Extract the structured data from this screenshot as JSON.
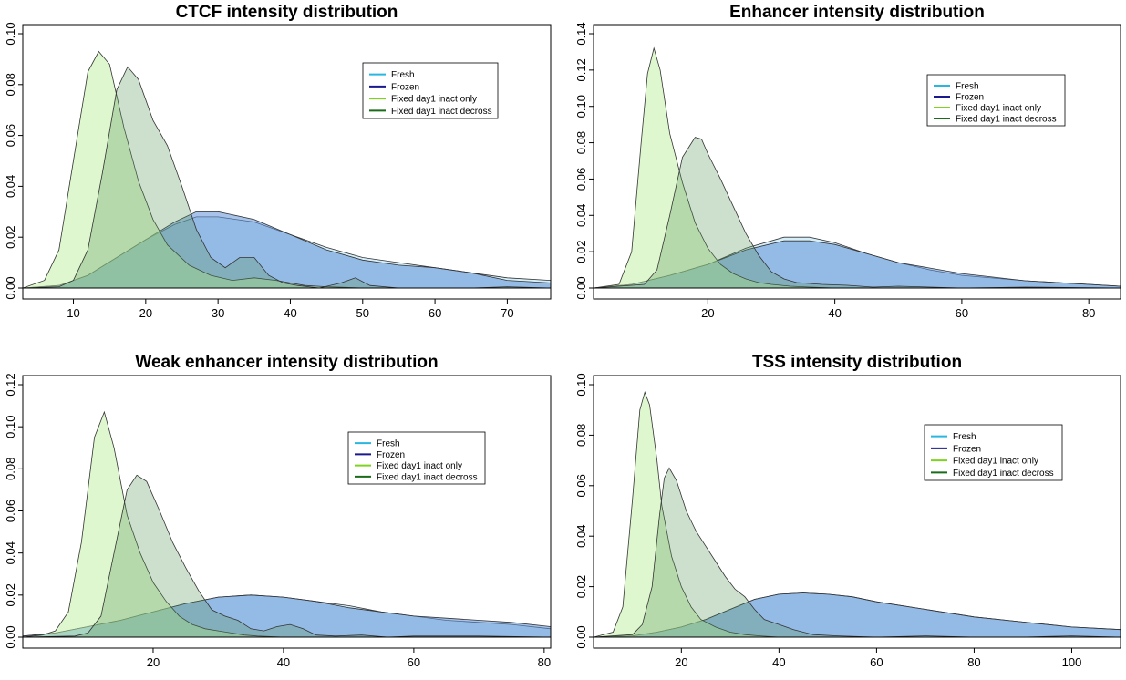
{
  "chart_data": [
    {
      "type": "area",
      "title": "CTCF intensity distribution",
      "xlabel": "",
      "ylabel": "",
      "xlim": [
        3,
        76
      ],
      "ylim": [
        0,
        0.1
      ],
      "xticks": [
        "10",
        "20",
        "30",
        "40",
        "50",
        "60",
        "70"
      ],
      "yticks": [
        "0.00",
        "0.02",
        "0.04",
        "0.06",
        "0.08",
        "0.10"
      ],
      "legend_position": "top-right",
      "series": [
        {
          "name": "Fresh",
          "color": "#29b6e0",
          "x": [
            3,
            8,
            12,
            16,
            20,
            24,
            27,
            30,
            35,
            40,
            45,
            50,
            55,
            60,
            65,
            70,
            76
          ],
          "y": [
            0,
            0.001,
            0.005,
            0.012,
            0.019,
            0.025,
            0.028,
            0.028,
            0.026,
            0.021,
            0.016,
            0.012,
            0.01,
            0.008,
            0.006,
            0.004,
            0.003
          ]
        },
        {
          "name": "Frozen",
          "color": "#1a1a8c",
          "x": [
            3,
            8,
            12,
            16,
            20,
            24,
            27,
            30,
            35,
            40,
            45,
            50,
            55,
            60,
            65,
            70,
            76
          ],
          "y": [
            0,
            0.001,
            0.005,
            0.012,
            0.019,
            0.026,
            0.03,
            0.03,
            0.027,
            0.021,
            0.015,
            0.011,
            0.009,
            0.008,
            0.006,
            0.003,
            0.002
          ]
        },
        {
          "name": "Fixed day1 inact only",
          "color": "#7ed321",
          "x": [
            3,
            6,
            8,
            10,
            12,
            13.5,
            15,
            17,
            19,
            21,
            23,
            26,
            29,
            32,
            35,
            38,
            42,
            45,
            50,
            55
          ],
          "y": [
            0,
            0.003,
            0.015,
            0.05,
            0.085,
            0.093,
            0.088,
            0.063,
            0.042,
            0.027,
            0.017,
            0.009,
            0.005,
            0.003,
            0.004,
            0.003,
            0.001,
            0.0005,
            0,
            0
          ]
        },
        {
          "name": "Fixed day1 inact decross",
          "color": "#1a6b1a",
          "x": [
            3,
            8,
            10,
            12,
            14,
            16,
            17.5,
            19,
            21,
            23,
            25,
            27,
            29,
            31,
            33,
            35,
            37,
            39,
            41,
            44,
            47,
            49,
            51,
            55,
            60,
            65,
            70,
            76
          ],
          "y": [
            0,
            0.0005,
            0.003,
            0.015,
            0.045,
            0.078,
            0.087,
            0.082,
            0.066,
            0.056,
            0.04,
            0.023,
            0.012,
            0.008,
            0.012,
            0.012,
            0.005,
            0.002,
            0.001,
            0,
            0.002,
            0.004,
            0.001,
            0,
            0,
            0,
            0.0005,
            0
          ]
        }
      ]
    },
    {
      "type": "area",
      "title": "Enhancer intensity distribution",
      "xlabel": "",
      "ylabel": "",
      "xlim": [
        2,
        85
      ],
      "ylim": [
        0,
        0.14
      ],
      "xticks": [
        "20",
        "40",
        "60",
        "80"
      ],
      "yticks": [
        "0.00",
        "0.02",
        "0.04",
        "0.06",
        "0.08",
        "0.10",
        "0.12",
        "0.14"
      ],
      "legend_position": "top-right",
      "series": [
        {
          "name": "Fresh",
          "color": "#29b6e0",
          "x": [
            2,
            8,
            14,
            20,
            26,
            32,
            36,
            40,
            45,
            50,
            55,
            60,
            70,
            85
          ],
          "y": [
            0,
            0.002,
            0.007,
            0.013,
            0.022,
            0.028,
            0.028,
            0.025,
            0.019,
            0.014,
            0.01,
            0.007,
            0.004,
            0.001
          ]
        },
        {
          "name": "Frozen",
          "color": "#1a1a8c",
          "x": [
            2,
            8,
            14,
            20,
            26,
            32,
            36,
            40,
            45,
            50,
            55,
            60,
            70,
            85
          ],
          "y": [
            0,
            0.002,
            0.007,
            0.013,
            0.021,
            0.026,
            0.026,
            0.024,
            0.019,
            0.014,
            0.011,
            0.008,
            0.004,
            0.001
          ]
        },
        {
          "name": "Fixed day1 inact only",
          "color": "#7ed321",
          "x": [
            2,
            6,
            8,
            9.5,
            10.5,
            11.5,
            12.5,
            14,
            16,
            18,
            20,
            22,
            24,
            26,
            28,
            30,
            33,
            36,
            40,
            45,
            50
          ],
          "y": [
            0,
            0.002,
            0.02,
            0.08,
            0.118,
            0.132,
            0.12,
            0.085,
            0.058,
            0.036,
            0.022,
            0.013,
            0.008,
            0.005,
            0.003,
            0.002,
            0.001,
            0.0005,
            0,
            0,
            0
          ]
        },
        {
          "name": "Fixed day1 inact decross",
          "color": "#1a6b1a",
          "x": [
            2,
            10,
            12,
            14,
            16,
            18,
            19,
            20,
            22,
            24,
            26,
            28,
            30,
            32,
            34,
            38,
            42,
            46,
            50,
            60,
            70,
            85
          ],
          "y": [
            0,
            0.002,
            0.01,
            0.04,
            0.072,
            0.083,
            0.082,
            0.074,
            0.06,
            0.045,
            0.03,
            0.018,
            0.009,
            0.005,
            0.003,
            0.002,
            0.0015,
            0.0005,
            0.001,
            0,
            0.0005,
            0
          ]
        }
      ]
    },
    {
      "type": "area",
      "title": "Weak enhancer intensity distribution",
      "xlabel": "",
      "ylabel": "",
      "xlim": [
        0,
        81
      ],
      "ylim": [
        0,
        0.12
      ],
      "xticks": [
        "20",
        "40",
        "60",
        "80"
      ],
      "yticks": [
        "0.00",
        "0.02",
        "0.04",
        "0.06",
        "0.08",
        "0.10",
        "0.12"
      ],
      "legend_position": "top-right",
      "series": [
        {
          "name": "Fresh",
          "color": "#29b6e0",
          "x": [
            0,
            5,
            10,
            15,
            20,
            25,
            30,
            35,
            40,
            45,
            50,
            55,
            60,
            65,
            70,
            75,
            81
          ],
          "y": [
            0.0005,
            0.002,
            0.005,
            0.008,
            0.012,
            0.016,
            0.019,
            0.02,
            0.019,
            0.017,
            0.015,
            0.012,
            0.01,
            0.008,
            0.007,
            0.006,
            0.004
          ]
        },
        {
          "name": "Frozen",
          "color": "#1a1a8c",
          "x": [
            0,
            5,
            10,
            15,
            20,
            25,
            30,
            35,
            40,
            45,
            50,
            55,
            60,
            65,
            70,
            75,
            81
          ],
          "y": [
            0.0005,
            0.002,
            0.005,
            0.008,
            0.012,
            0.016,
            0.019,
            0.02,
            0.019,
            0.017,
            0.014,
            0.012,
            0.01,
            0.009,
            0.008,
            0.007,
            0.005
          ]
        },
        {
          "name": "Fixed day1 inact only",
          "color": "#7ed321",
          "x": [
            0,
            3,
            5,
            7,
            9,
            11,
            12.5,
            14,
            16,
            18,
            20,
            22,
            24,
            26,
            28,
            30,
            32,
            34,
            36,
            40,
            45,
            50
          ],
          "y": [
            0,
            0.001,
            0.003,
            0.012,
            0.045,
            0.095,
            0.107,
            0.09,
            0.058,
            0.04,
            0.026,
            0.017,
            0.01,
            0.006,
            0.004,
            0.003,
            0.002,
            0.001,
            0.0005,
            0,
            0,
            0
          ]
        },
        {
          "name": "Fixed day1 inact decross",
          "color": "#1a6b1a",
          "x": [
            0,
            8,
            10,
            12,
            14,
            16,
            17.5,
            19,
            21,
            23,
            25,
            27,
            29,
            31,
            33,
            35,
            37,
            39,
            41,
            43,
            45,
            48,
            52,
            56,
            60,
            70,
            81
          ],
          "y": [
            0,
            0.0005,
            0.002,
            0.01,
            0.04,
            0.07,
            0.077,
            0.074,
            0.06,
            0.045,
            0.033,
            0.022,
            0.013,
            0.01,
            0.008,
            0.004,
            0.003,
            0.005,
            0.006,
            0.004,
            0.001,
            0.0005,
            0.001,
            0,
            0.0005,
            0.0005,
            0
          ]
        }
      ]
    },
    {
      "type": "area",
      "title": "TSS intensity distribution",
      "xlabel": "",
      "ylabel": "",
      "xlim": [
        2,
        110
      ],
      "ylim": [
        0,
        0.1
      ],
      "xticks": [
        "20",
        "40",
        "60",
        "80",
        "100"
      ],
      "yticks": [
        "0.00",
        "0.02",
        "0.04",
        "0.06",
        "0.08",
        "0.10"
      ],
      "legend_position": "top-right",
      "series": [
        {
          "name": "Fresh",
          "color": "#29b6e0",
          "x": [
            2,
            10,
            15,
            20,
            25,
            30,
            35,
            40,
            45,
            50,
            55,
            60,
            70,
            80,
            90,
            100,
            110
          ],
          "y": [
            0,
            0.0005,
            0.002,
            0.004,
            0.007,
            0.011,
            0.015,
            0.017,
            0.0175,
            0.017,
            0.016,
            0.014,
            0.011,
            0.008,
            0.006,
            0.004,
            0.003
          ]
        },
        {
          "name": "Frozen",
          "color": "#1a1a8c",
          "x": [
            2,
            10,
            15,
            20,
            25,
            30,
            35,
            40,
            45,
            50,
            55,
            60,
            70,
            80,
            90,
            100,
            110
          ],
          "y": [
            0,
            0.0005,
            0.002,
            0.004,
            0.007,
            0.011,
            0.015,
            0.017,
            0.0175,
            0.017,
            0.016,
            0.014,
            0.011,
            0.008,
            0.006,
            0.004,
            0.003
          ]
        },
        {
          "name": "Fixed day1 inact only",
          "color": "#7ed321",
          "x": [
            2,
            6,
            8,
            10,
            11.5,
            12.5,
            13.5,
            15,
            16,
            18,
            20,
            22,
            24,
            27,
            30,
            33,
            36,
            40
          ],
          "y": [
            0,
            0.002,
            0.012,
            0.055,
            0.09,
            0.097,
            0.092,
            0.07,
            0.052,
            0.032,
            0.02,
            0.012,
            0.007,
            0.004,
            0.002,
            0.001,
            0.0005,
            0
          ]
        },
        {
          "name": "Fixed day1 inact decross",
          "color": "#1a6b1a",
          "x": [
            2,
            10,
            12,
            14,
            15.5,
            16.5,
            17.5,
            19,
            21,
            23,
            25,
            27,
            29,
            31,
            33,
            35,
            37,
            40,
            43,
            47,
            52,
            60,
            70,
            80,
            90,
            100,
            110
          ],
          "y": [
            0,
            0.001,
            0.005,
            0.02,
            0.048,
            0.063,
            0.067,
            0.062,
            0.05,
            0.042,
            0.036,
            0.03,
            0.024,
            0.019,
            0.016,
            0.011,
            0.007,
            0.005,
            0.003,
            0.001,
            0.0005,
            0,
            0.0005,
            0,
            0,
            0.0005,
            0
          ]
        }
      ]
    }
  ]
}
